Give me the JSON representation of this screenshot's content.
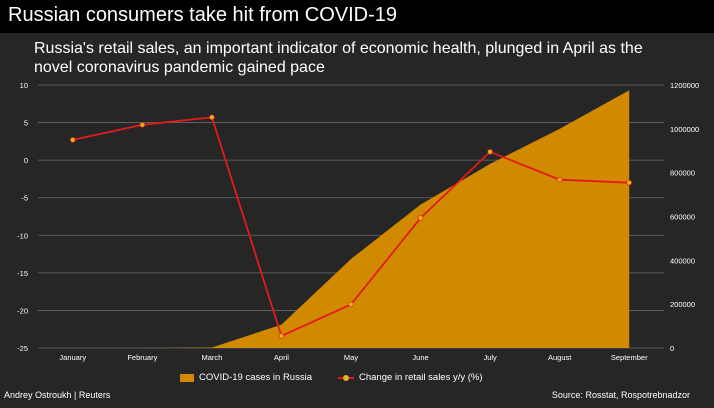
{
  "title": "Russian consumers take hit from COVID-19",
  "subtitle": "Russia's retail sales, an important indicator of economic health, plunged in April as the novel coronavirus pandemic gained pace",
  "credit": "Andrey Ostroukh | Reuters",
  "source": "Source: Rosstat,  Rospotrebnadzor",
  "legend": {
    "area_label": "COVID-19 cases in Russia",
    "line_label": "Change in retail sales y/y (%)"
  },
  "colors": {
    "background": "#262626",
    "area": "#d18a00",
    "line": "#e31a1c",
    "marker": "#f0b020",
    "grid": "#6a6a6a"
  },
  "chart_data": {
    "type": "line",
    "categories": [
      "January",
      "February",
      "March",
      "April",
      "May",
      "June",
      "July",
      "August",
      "September"
    ],
    "y_left": {
      "ylim": [
        -25,
        10
      ],
      "ticks": [
        "10",
        "5",
        "0",
        "-5",
        "-10",
        "-15",
        "-20",
        "-25"
      ]
    },
    "y_right": {
      "ylim": [
        0,
        1200000
      ],
      "ticks": [
        "1200000",
        "1000000",
        "800000",
        "600000",
        "400000",
        "200000",
        "0"
      ]
    },
    "grid": true,
    "legend_position": "bottom",
    "series": [
      {
        "name": "COVID-19 cases in Russia",
        "type": "area",
        "axis": "right",
        "values": [
          0,
          0,
          2337,
          106498,
          405843,
          654405,
          839981,
          1000048,
          1176286
        ]
      },
      {
        "name": "Change in retail sales y/y (%)",
        "type": "line",
        "axis": "left",
        "values": [
          2.7,
          4.7,
          5.7,
          -23.4,
          -19.2,
          -7.7,
          1.1,
          -2.6,
          -3.0
        ]
      }
    ]
  }
}
